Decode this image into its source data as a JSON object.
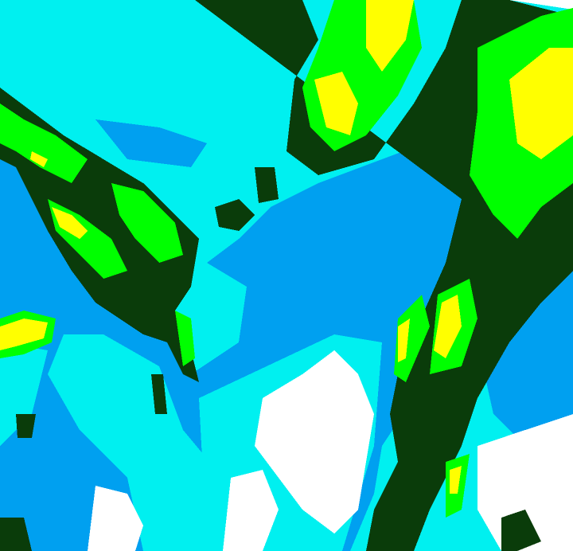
{
  "colors": {
    "background": "#00f0f0",
    "light_precip": "#00a0f0",
    "clear": "#ffffff",
    "moderate": "#0a3c0a",
    "heavy": "#00ff00",
    "very_heavy": "#ffff00"
  }
}
